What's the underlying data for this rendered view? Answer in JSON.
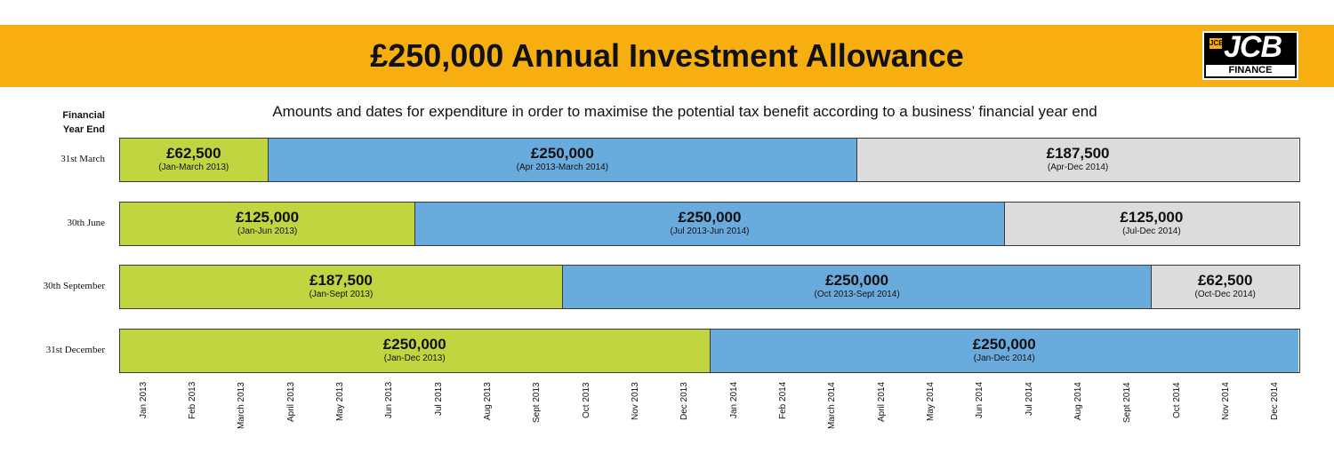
{
  "header": {
    "title": "£250,000 Annual Investment Allowance",
    "logo_text": "JCB",
    "logo_subtext": "FINANCE",
    "logo_mark": "JCB"
  },
  "subtitle": "Amounts and dates for expenditure in order to maximise the potential tax benefit according to a business’ financial year end",
  "row_header": [
    "Financial",
    "Year End"
  ],
  "colors": {
    "banner": "#f6ae10",
    "green": "#c1d540",
    "blue": "#6aabdd",
    "grey": "#dcdcdc"
  },
  "chart_data": {
    "type": "bar",
    "orientation": "horizontal-stacked-timeline",
    "x_ticks": [
      "Jan 2013",
      "Feb 2013",
      "March 2013",
      "April 2013",
      "May 2013",
      "Jun 2013",
      "Jul 2013",
      "Aug 2013",
      "Sept 2013",
      "Oct 2013",
      "Nov 2013",
      "Dec 2013",
      "Jan 2014",
      "Feb 2014",
      "March 2014",
      "April 2014",
      "May 2014",
      "Jun 2014",
      "Jul 2014",
      "Aug 2014",
      "Sept 2014",
      "Oct 2014",
      "Nov 2014",
      "Dec 2014"
    ],
    "rows": [
      {
        "label": "31st March",
        "segments": [
          {
            "amount": "£62,500",
            "period": "(Jan-March 2013)",
            "start": "Jan 2013",
            "end": "March 2013",
            "color": "green"
          },
          {
            "amount": "£250,000",
            "period": "(Apr 2013-March 2014)",
            "start": "April 2013",
            "end": "March 2014",
            "color": "blue"
          },
          {
            "amount": "£187,500",
            "period": "(Apr-Dec 2014)",
            "start": "April 2014",
            "end": "Dec 2014",
            "color": "grey"
          }
        ]
      },
      {
        "label": "30th June",
        "segments": [
          {
            "amount": "£125,000",
            "period": "(Jan-Jun 2013)",
            "start": "Jan 2013",
            "end": "Jun 2013",
            "color": "green"
          },
          {
            "amount": "£250,000",
            "period": "(Jul 2013-Jun 2014)",
            "start": "Jul 2013",
            "end": "Jun 2014",
            "color": "blue"
          },
          {
            "amount": "£125,000",
            "period": "(Jul-Dec 2014)",
            "start": "Jul 2014",
            "end": "Dec 2014",
            "color": "grey"
          }
        ]
      },
      {
        "label": "30th September",
        "segments": [
          {
            "amount": "£187,500",
            "period": "(Jan-Sept 2013)",
            "start": "Jan 2013",
            "end": "Sept 2013",
            "color": "green"
          },
          {
            "amount": "£250,000",
            "period": "(Oct 2013-Sept 2014)",
            "start": "Oct 2013",
            "end": "Sept 2014",
            "color": "blue"
          },
          {
            "amount": "£62,500",
            "period": "(Oct-Dec 2014)",
            "start": "Oct 2014",
            "end": "Dec 2014",
            "color": "grey"
          }
        ]
      },
      {
        "label": "31st December",
        "segments": [
          {
            "amount": "£250,000",
            "period": "(Jan-Dec 2013)",
            "start": "Jan 2013",
            "end": "Dec 2013",
            "color": "green"
          },
          {
            "amount": "£250,000",
            "period": "(Jan-Dec 2014)",
            "start": "Jan 2014",
            "end": "Dec 2014",
            "color": "blue"
          }
        ]
      }
    ]
  }
}
